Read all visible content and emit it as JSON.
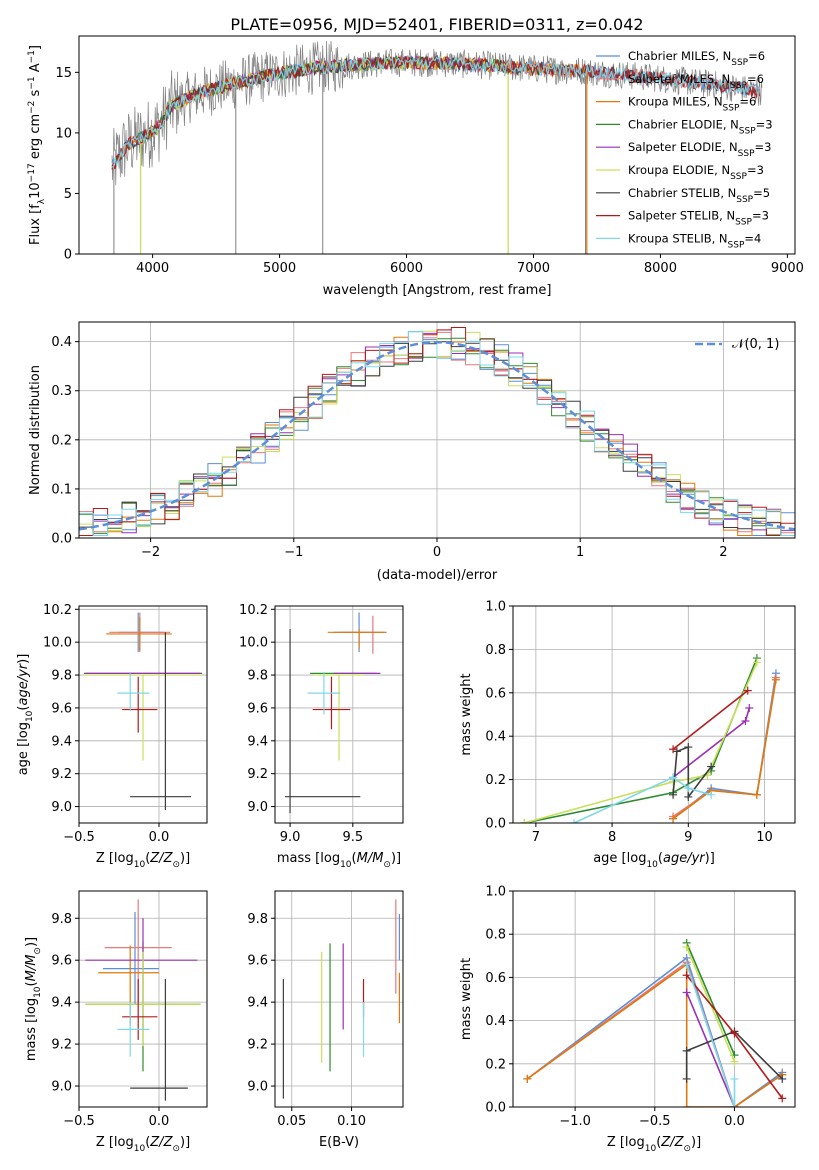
{
  "title": "PLATE=0956, MJD=52401, FIBERID=0311, z=0.042",
  "colors": {
    "cm": "#5b8fd9",
    "sm": "#e7787c",
    "km": "#e0780a",
    "ce": "#2e8b2e",
    "se": "#9b2fb5",
    "ke": "#c8e05a",
    "cs": "#3d3d3d",
    "ss": "#b31b1b",
    "ks": "#7fd8e8",
    "observed": "#808080",
    "gauss": "#5b8fd9"
  },
  "series_order": [
    "cm",
    "sm",
    "km",
    "ce",
    "se",
    "ke",
    "cs",
    "ss",
    "ks"
  ],
  "chart_data": [
    {
      "id": "spectrum",
      "type": "line",
      "xlabel": "wavelength [Angstrom, rest frame]",
      "ylabel": "Flux [f_λ 10^-17 erg cm^-2 s^-1 A^-1]",
      "xlim": [
        3420,
        9060
      ],
      "ylim": [
        0,
        18
      ],
      "xticks": [
        4000,
        5000,
        6000,
        7000,
        8000,
        9000
      ],
      "yticks": [
        0,
        5,
        10,
        15
      ],
      "legend_position": "upper right",
      "legend": [
        {
          "key": "cm",
          "pre": "Chabrier MILES, N",
          "sub": "SSP",
          "post": "=6"
        },
        {
          "key": "sm",
          "pre": "Salpeter MILES, N",
          "sub": "SSP",
          "post": "=6"
        },
        {
          "key": "km",
          "pre": "Kroupa MILES, N",
          "sub": "SSP",
          "post": "=6"
        },
        {
          "key": "ce",
          "pre": "Chabrier ELODIE, N",
          "sub": "SSP",
          "post": "=3"
        },
        {
          "key": "se",
          "pre": "Salpeter ELODIE, N",
          "sub": "SSP",
          "post": "=3"
        },
        {
          "key": "ke",
          "pre": "Kroupa ELODIE, N",
          "sub": "SSP",
          "post": "=3"
        },
        {
          "key": "cs",
          "pre": "Chabrier STELIB, N",
          "sub": "SSP",
          "post": "=5"
        },
        {
          "key": "ss",
          "pre": "Salpeter STELIB, N",
          "sub": "SSP",
          "post": "=3"
        },
        {
          "key": "ks",
          "pre": "Kroupa STELIB, N",
          "sub": "SSP",
          "post": "=4"
        }
      ],
      "continuum": [
        [
          3680,
          7.2
        ],
        [
          3800,
          9.0
        ],
        [
          3950,
          9.8
        ],
        [
          4050,
          10.5
        ],
        [
          4150,
          12.2
        ],
        [
          4300,
          13.0
        ],
        [
          4500,
          13.7
        ],
        [
          4800,
          14.5
        ],
        [
          5000,
          14.9
        ],
        [
          5300,
          15.4
        ],
        [
          5600,
          15.6
        ],
        [
          5900,
          15.8
        ],
        [
          6200,
          15.8
        ],
        [
          6600,
          15.6
        ],
        [
          7000,
          15.3
        ],
        [
          7400,
          15.1
        ],
        [
          7700,
          14.8
        ],
        [
          8000,
          14.5
        ],
        [
          8400,
          14.0
        ],
        [
          8800,
          13.4
        ]
      ],
      "model_ranges": {
        "cm": [
          3680,
          8790
        ],
        "sm": [
          3680,
          8790
        ],
        "km": [
          3680,
          7420
        ],
        "ce": [
          3880,
          6800
        ],
        "se": [
          3880,
          6800
        ],
        "ke": [
          3880,
          6800
        ],
        "cs": [
          3680,
          8790
        ],
        "ss": [
          3680,
          8790
        ],
        "ks": [
          3680,
          8790
        ]
      },
      "observed_range": [
        3680,
        8800
      ],
      "spikes": [
        [
          3695,
          0.5
        ],
        [
          3905,
          0.3
        ],
        [
          4655,
          0.3
        ],
        [
          5340,
          0.5
        ],
        [
          6800,
          0.3
        ],
        [
          7410,
          12.5
        ]
      ]
    },
    {
      "id": "residuals",
      "type": "histogram",
      "xlabel": "(data-model)/error",
      "ylabel": "Normed distribution",
      "xlim": [
        -2.5,
        2.5
      ],
      "ylim": [
        0,
        0.44
      ],
      "xticks": [
        -2,
        -1,
        0,
        1,
        2
      ],
      "yticks": [
        0.0,
        0.1,
        0.2,
        0.3,
        0.4
      ],
      "bin_width": 0.1,
      "legend": [
        {
          "key": "gauss",
          "label": "𝒩(0, 1)",
          "style": "dashed"
        }
      ],
      "density_curve": "normal(0,1)"
    },
    {
      "id": "age_vs_Z",
      "type": "errorbar",
      "xlabel_pre": "Z [log",
      "xlabel_post": "(Z/Z",
      "xlabel_sub1": "10",
      "xlabel_sub2": "⊙",
      "xlabel_end": ")]",
      "ylabel": "age  [log10(age/yr)]",
      "xlim": [
        -0.5,
        0.3
      ],
      "ylim": [
        8.9,
        10.22
      ],
      "xticks": [
        -0.5,
        0.0
      ],
      "yticks": [
        9.0,
        9.2,
        9.4,
        9.6,
        9.8,
        10.0,
        10.2
      ],
      "points": {
        "cm": {
          "x": -0.13,
          "xerr": [
            0.12,
            0.16
          ],
          "y": 10.06,
          "yerr": [
            0.12,
            0.12
          ]
        },
        "sm": {
          "x": -0.12,
          "xerr": [
            0.19,
            0.19
          ],
          "y": 10.06,
          "yerr": [
            0.12,
            0.12
          ]
        },
        "km": {
          "x": -0.12,
          "xerr": [
            0.21,
            0.2
          ],
          "y": 10.05,
          "yerr": [
            0.1,
            0.1
          ]
        },
        "ce": {
          "x": -0.1,
          "xerr": [
            0.37,
            0.37
          ],
          "y": 9.81,
          "yerr": [
            0.0,
            0.0
          ]
        },
        "se": {
          "x": -0.1,
          "xerr": [
            0.36,
            0.36
          ],
          "y": 9.81,
          "yerr": [
            0.0,
            0.0
          ]
        },
        "ke": {
          "x": -0.1,
          "xerr": [
            0.37,
            0.37
          ],
          "y": 9.8,
          "yerr": [
            0.52,
            0.0
          ]
        },
        "cs": {
          "x": 0.04,
          "xerr": [
            0.22,
            0.16
          ],
          "y": 9.06,
          "yerr": [
            0.08,
            1.0
          ]
        },
        "ss": {
          "x": -0.13,
          "xerr": [
            0.1,
            0.12
          ],
          "y": 9.59,
          "yerr": [
            0.14,
            0.2
          ]
        },
        "ks": {
          "x": -0.18,
          "xerr": [
            0.08,
            0.12
          ],
          "y": 9.69,
          "yerr": [
            0.11,
            0.12
          ]
        }
      }
    },
    {
      "id": "age_vs_mass",
      "type": "errorbar",
      "xlabel_pre": "mass [log",
      "xlabel_post": "(M/M",
      "xlabel_sub1": "10",
      "xlabel_sub2": "⊙",
      "xlabel_end": ")]",
      "ylabel": "",
      "xlim": [
        8.88,
        9.9
      ],
      "ylim": [
        8.9,
        10.22
      ],
      "xticks": [
        9.0,
        9.5
      ],
      "yticks": [
        9.0,
        9.2,
        9.4,
        9.6,
        9.8,
        10.0,
        10.2
      ],
      "points": {
        "cm": {
          "x": 9.55,
          "xerr": [
            0.2,
            0.2
          ],
          "y": 10.06,
          "yerr": [
            0.12,
            0.12
          ]
        },
        "sm": {
          "x": 9.66,
          "xerr": [
            0.26,
            0.0
          ],
          "y": 10.06,
          "yerr": [
            0.13,
            0.1
          ]
        },
        "km": {
          "x": 9.55,
          "xerr": [
            0.25,
            0.22
          ],
          "y": 10.06,
          "yerr": [
            0.1,
            0.02
          ]
        },
        "ce": {
          "x": 9.39,
          "xerr": [
            0.23,
            0.3
          ],
          "y": 9.81,
          "yerr": [
            0.0,
            0.0
          ]
        },
        "se": {
          "x": 9.6,
          "xerr": [
            0.25,
            0.12
          ],
          "y": 9.81,
          "yerr": [
            0.0,
            0.0
          ]
        },
        "ke": {
          "x": 9.39,
          "xerr": [
            0.2,
            0.2
          ],
          "y": 9.8,
          "yerr": [
            0.52,
            0.0
          ]
        },
        "cs": {
          "x": 9.0,
          "xerr": [
            0.04,
            0.56
          ],
          "y": 9.06,
          "yerr": [
            0.1,
            1.02
          ]
        },
        "ss": {
          "x": 9.33,
          "xerr": [
            0.15,
            0.15
          ],
          "y": 9.59,
          "yerr": [
            0.12,
            0.2
          ]
        },
        "ks": {
          "x": 9.27,
          "xerr": [
            0.13,
            0.13
          ],
          "y": 9.69,
          "yerr": [
            0.13,
            0.13
          ]
        }
      }
    },
    {
      "id": "massweight_vs_age",
      "type": "line",
      "xlabel": "age  [log10(age/yr)]",
      "ylabel": "mass weight",
      "xlim": [
        6.7,
        10.4
      ],
      "ylim": [
        0,
        1.0
      ],
      "xticks": [
        7,
        8,
        9,
        10
      ],
      "yticks": [
        0.0,
        0.2,
        0.4,
        0.6,
        0.8,
        1.0
      ],
      "lines": {
        "cm": [
          [
            8.8,
            0.02
          ],
          [
            9.3,
            0.16
          ],
          [
            9.9,
            0.13
          ],
          [
            10.15,
            0.69
          ]
        ],
        "sm": [
          [
            8.8,
            0.03
          ],
          [
            9.3,
            0.15
          ],
          [
            9.9,
            0.13
          ],
          [
            10.15,
            0.67
          ]
        ],
        "km": [
          [
            8.8,
            0.02
          ],
          [
            9.3,
            0.15
          ],
          [
            9.9,
            0.13
          ],
          [
            10.15,
            0.66
          ]
        ],
        "ce": [
          [
            6.85,
            0.0
          ],
          [
            8.8,
            0.14
          ],
          [
            9.3,
            0.24
          ],
          [
            9.9,
            0.76
          ]
        ],
        "se": [
          [
            8.8,
            0.21
          ],
          [
            9.75,
            0.47
          ],
          [
            9.8,
            0.53
          ]
        ],
        "ke": [
          [
            6.85,
            0.0
          ],
          [
            8.8,
            0.19
          ],
          [
            9.25,
            0.22
          ],
          [
            9.9,
            0.74
          ]
        ],
        "cs": [
          [
            8.8,
            0.13
          ],
          [
            8.85,
            0.33
          ],
          [
            9.0,
            0.35
          ],
          [
            9.0,
            0.12
          ],
          [
            9.3,
            0.26
          ]
        ],
        "ss": [
          [
            8.8,
            0.34
          ],
          [
            9.78,
            0.61
          ]
        ],
        "ks": [
          [
            7.5,
            0.0
          ],
          [
            8.8,
            0.21
          ],
          [
            9.0,
            0.16
          ],
          [
            9.3,
            0.13
          ]
        ]
      }
    },
    {
      "id": "mass_vs_Z",
      "type": "errorbar",
      "xlabel_pre": "Z [log",
      "xlabel_post": "(Z/Z",
      "xlabel_sub1": "10",
      "xlabel_sub2": "⊙",
      "xlabel_end": ")]",
      "ylabel": "mass [log10(M/M⊙)]",
      "xlim": [
        -0.5,
        0.3
      ],
      "ylim": [
        8.9,
        9.93
      ],
      "xticks": [
        -0.5,
        0.0
      ],
      "yticks": [
        9.0,
        9.2,
        9.4,
        9.6,
        9.8
      ],
      "points": {
        "cm": {
          "x": -0.15,
          "xerr": [
            0.2,
            0.15
          ],
          "y": 9.56,
          "yerr": [
            0.17,
            0.27
          ]
        },
        "sm": {
          "x": -0.13,
          "xerr": [
            0.21,
            0.21
          ],
          "y": 9.66,
          "yerr": [
            0.26,
            0.23
          ]
        },
        "km": {
          "x": -0.18,
          "xerr": [
            0.2,
            0.18
          ],
          "y": 9.54,
          "yerr": [
            0.25,
            0.13
          ]
        },
        "ce": {
          "x": -0.1,
          "xerr": [
            0.36,
            0.36
          ],
          "y": 9.39,
          "yerr": [
            0.32,
            0.3
          ]
        },
        "se": {
          "x": -0.1,
          "xerr": [
            0.36,
            0.34
          ],
          "y": 9.6,
          "yerr": [
            0.34,
            0.2
          ]
        },
        "ke": {
          "x": -0.1,
          "xerr": [
            0.36,
            0.36
          ],
          "y": 9.39,
          "yerr": [
            0.2,
            0.25
          ]
        },
        "cs": {
          "x": 0.04,
          "xerr": [
            0.22,
            0.14
          ],
          "y": 8.99,
          "yerr": [
            0.06,
            0.52
          ]
        },
        "ss": {
          "x": -0.13,
          "xerr": [
            0.1,
            0.12
          ],
          "y": 9.33,
          "yerr": [
            0.11,
            0.18
          ]
        },
        "ks": {
          "x": -0.18,
          "xerr": [
            0.08,
            0.12
          ],
          "y": 9.27,
          "yerr": [
            0.13,
            0.13
          ]
        }
      }
    },
    {
      "id": "mass_vs_ebv",
      "type": "errorbar",
      "xlabel": "E(B-V)",
      "ylabel": "",
      "xlim": [
        0.036,
        0.143
      ],
      "ylim": [
        8.9,
        9.93
      ],
      "xticks": [
        0.05,
        0.1
      ],
      "yticks": [
        9.0,
        9.2,
        9.4,
        9.6,
        9.8
      ],
      "points": {
        "cm": {
          "x": 0.14,
          "xerr": [
            0,
            0
          ],
          "y": 9.6,
          "yerr": [
            0.0,
            0.22
          ]
        },
        "sm": {
          "x": 0.137,
          "xerr": [
            0,
            0
          ],
          "y": 9.66,
          "yerr": [
            0.22,
            0.23
          ]
        },
        "km": {
          "x": 0.14,
          "xerr": [
            0,
            0
          ],
          "y": 9.54,
          "yerr": [
            0.24,
            0.0
          ]
        },
        "ce": {
          "x": 0.082,
          "xerr": [
            0,
            0
          ],
          "y": 9.39,
          "yerr": [
            0.32,
            0.29
          ]
        },
        "se": {
          "x": 0.093,
          "xerr": [
            0,
            0
          ],
          "y": 9.45,
          "yerr": [
            0.18,
            0.23
          ]
        },
        "ke": {
          "x": 0.075,
          "xerr": [
            0,
            0
          ],
          "y": 9.39,
          "yerr": [
            0.28,
            0.25
          ]
        },
        "cs": {
          "x": 0.043,
          "xerr": [
            0,
            0
          ],
          "y": 9.2,
          "yerr": [
            0.26,
            0.31
          ]
        },
        "ss": {
          "x": 0.11,
          "xerr": [
            0,
            0
          ],
          "y": 9.33,
          "yerr": [
            0.0,
            0.18
          ]
        },
        "ks": {
          "x": 0.11,
          "xerr": [
            0,
            0
          ],
          "y": 9.27,
          "yerr": [
            0.13,
            0.13
          ]
        }
      }
    },
    {
      "id": "massweight_vs_Z",
      "type": "line",
      "xlabel_pre": "Z [log",
      "xlabel_post": "(Z/Z",
      "xlabel_sub1": "10",
      "xlabel_sub2": "⊙",
      "xlabel_end": ")]",
      "ylabel": "mass weight",
      "xlim": [
        -1.39,
        0.38
      ],
      "ylim": [
        0,
        1.0
      ],
      "xticks": [
        -1.0,
        -0.5,
        0.0
      ],
      "yticks": [
        0.0,
        0.2,
        0.4,
        0.6,
        0.8,
        1.0
      ],
      "lines": {
        "cm": [
          [
            -1.3,
            0.13
          ],
          [
            -0.3,
            0.69
          ],
          [
            0.0,
            0.0
          ],
          [
            0.3,
            0.16
          ]
        ],
        "sm": [
          [
            -1.3,
            0.13
          ],
          [
            -0.3,
            0.67
          ],
          [
            0.0,
            0.0
          ],
          [
            0.3,
            0.15
          ]
        ],
        "km": [
          [
            -1.3,
            0.13
          ],
          [
            -0.3,
            0.66
          ],
          [
            -0.3,
            0.0
          ],
          [
            0.0,
            0.0
          ],
          [
            0.3,
            0.15
          ]
        ],
        "ce": [
          [
            -0.3,
            0.76
          ],
          [
            0.0,
            0.24
          ]
        ],
        "se": [
          [
            -0.3,
            0.53
          ],
          [
            0.0,
            0.0
          ]
        ],
        "ke": [
          [
            -0.3,
            0.74
          ],
          [
            0.0,
            0.21
          ]
        ],
        "cs": [
          [
            -0.3,
            0.13
          ],
          [
            -0.3,
            0.26
          ],
          [
            0.0,
            0.35
          ],
          [
            0.3,
            0.13
          ]
        ],
        "ss": [
          [
            -0.3,
            0.61
          ],
          [
            0.0,
            0.34
          ],
          [
            0.3,
            0.04
          ]
        ],
        "ks": [
          [
            -0.3,
            0.66
          ],
          [
            0.0,
            0.0
          ],
          [
            0.0,
            0.13
          ]
        ]
      }
    }
  ]
}
